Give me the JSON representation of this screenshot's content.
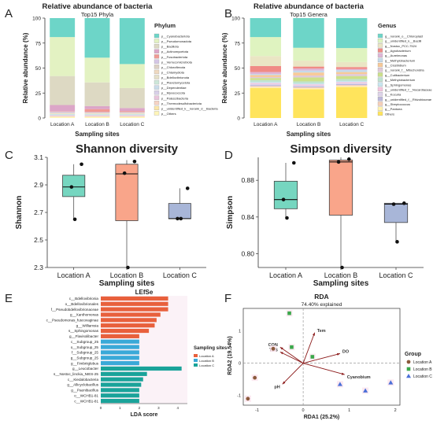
{
  "panels": {
    "A": "A",
    "B": "B",
    "C": "C",
    "D": "D",
    "E": "E",
    "F": "F"
  },
  "chart_data": [
    {
      "id": "A",
      "type": "bar",
      "stacked": true,
      "title": "Relative abundance of bacteria",
      "subtitle": "Top15 Phyla",
      "xlabel": "Sampling sites",
      "ylabel": "Relative abundance (%)",
      "ylim": [
        0,
        100
      ],
      "yticks": [
        0,
        25,
        50,
        75,
        100
      ],
      "legend_title": "Phylum",
      "legend_position": "right",
      "categories": [
        "Location A",
        "Location B",
        "Location C"
      ],
      "series": [
        {
          "name": "p__Others",
          "color": "#fff5b8",
          "values": [
            1,
            1,
            1
          ]
        },
        {
          "name": "p__unidentified_k__norank_d__Bacteria",
          "color": "#fbe6a8",
          "values": [
            0.5,
            0.5,
            0.5
          ]
        },
        {
          "name": "p__Thermodesulfobacteriota",
          "color": "#f6d3c4",
          "values": [
            0.5,
            0.5,
            0.5
          ]
        },
        {
          "name": "p__Patescibacteria",
          "color": "#e9c5dc",
          "values": [
            0.5,
            0.5,
            0.5
          ]
        },
        {
          "name": "p__Myxococcota",
          "color": "#d8d0e8",
          "values": [
            0.5,
            0.5,
            0.5
          ]
        },
        {
          "name": "p__Dependentiae",
          "color": "#c9dcea",
          "values": [
            0.5,
            0.5,
            0.5
          ]
        },
        {
          "name": "p__Planctomycetota",
          "color": "#cde7d9",
          "values": [
            0.5,
            0.5,
            0.5
          ]
        },
        {
          "name": "p__Bdellovibrionota",
          "color": "#e5e0c8",
          "values": [
            0.5,
            0.5,
            0.5
          ]
        },
        {
          "name": "p__Chlamydiota",
          "color": "#efd9c0",
          "values": [
            0.5,
            0.5,
            0.5
          ]
        },
        {
          "name": "p__Chloroflexota",
          "color": "#dcd0c4",
          "values": [
            0.5,
            0.5,
            0.5
          ]
        },
        {
          "name": "p__Verrucomicrobiota",
          "color": "#d5c6e6",
          "values": [
            1,
            0.5,
            0.5
          ]
        },
        {
          "name": "p__Fusobacteriota",
          "color": "#f09a94",
          "values": [
            0.5,
            3,
            1
          ]
        },
        {
          "name": "p__Actinomycetota",
          "color": "#dca6c8",
          "values": [
            6,
            3,
            3
          ]
        },
        {
          "name": "p__Bacillota",
          "color": "#ddd9c3",
          "values": [
            29,
            24,
            20
          ]
        },
        {
          "name": "p__Pseudomonadota",
          "color": "#e3f2c2",
          "values": [
            39,
            25,
            24
          ]
        },
        {
          "name": "p__Cyanobacteriota",
          "color": "#6dd5c8",
          "values": [
            19,
            40,
            46
          ]
        }
      ]
    },
    {
      "id": "B",
      "type": "bar",
      "stacked": true,
      "title": "Relative abundance of bacteria",
      "subtitle": "Top15 Genera",
      "xlabel": "Sampling sites",
      "ylabel": "Relative abundance (%)",
      "ylim": [
        0,
        100
      ],
      "yticks": [
        0,
        25,
        50,
        75,
        100
      ],
      "legend_title": "Genus",
      "legend_position": "right",
      "categories": [
        "Location A",
        "Location B",
        "Location C"
      ],
      "series": [
        {
          "name": "Others",
          "color": "#ffe45c",
          "values": [
            30,
            29,
            31
          ]
        },
        {
          "name": "g__Pantoea",
          "color": "#fff2b0",
          "values": [
            1,
            1,
            1
          ]
        },
        {
          "name": "g__Streptococcus",
          "color": "#f6cfb9",
          "values": [
            1,
            1,
            1
          ]
        },
        {
          "name": "g__unidentified_f__Rhizobiaceae",
          "color": "#bbb7dc",
          "values": [
            1,
            1,
            1
          ]
        },
        {
          "name": "g__Kocuria",
          "color": "#ded3ea",
          "values": [
            1,
            1,
            1
          ]
        },
        {
          "name": "g__unidentified_f__Nocardiaceae",
          "color": "#f5c4de",
          "values": [
            1,
            1,
            1
          ]
        },
        {
          "name": "g__Sphingomonas",
          "color": "#c8e6f0",
          "values": [
            1,
            1,
            1
          ]
        },
        {
          "name": "g__Methylobacterium",
          "color": "#bfe3d0",
          "values": [
            2,
            2,
            2
          ]
        },
        {
          "name": "g__Cutibacterium",
          "color": "#cce08a",
          "values": [
            2,
            4,
            3
          ]
        },
        {
          "name": "g__norank_f__Mitochondria",
          "color": "#e0c9d8",
          "values": [
            1,
            2,
            2
          ]
        },
        {
          "name": "g__Clostridium",
          "color": "#f7c998",
          "values": [
            2,
            3,
            2
          ]
        },
        {
          "name": "g__Methylobacterium",
          "color": "#c5d9ea",
          "values": [
            1,
            2,
            2
          ]
        },
        {
          "name": "g__Aureimonas",
          "color": "#ddb5d6",
          "values": [
            2,
            2,
            1
          ]
        },
        {
          "name": "g__Agrobacterium",
          "color": "#f08a86",
          "values": [
            6,
            2,
            2
          ]
        },
        {
          "name": "g__Nostoc_PCC-7524",
          "color": "#eae5c4",
          "values": [
            10,
            6,
            5
          ]
        },
        {
          "name": "g__unidentified_k__Bacilli",
          "color": "#dff3c0",
          "values": [
            19,
            13,
            14
          ]
        },
        {
          "name": "g__norank_o__Chloroplast",
          "color": "#6dd5c8",
          "values": [
            19,
            30,
            30
          ]
        }
      ]
    },
    {
      "id": "C",
      "type": "box",
      "title": "Shannon diversity",
      "xlabel": "Sampling sites",
      "ylabel": "Shannon",
      "ylim": [
        2.3,
        3.1
      ],
      "yticks": [
        "2.3",
        "2.5",
        "2.7",
        "2.9",
        "3.1"
      ],
      "categories": [
        "Location A",
        "Location B",
        "Location C"
      ],
      "colors": [
        "#76d6c0",
        "#f9a58a",
        "#a8b6d8"
      ],
      "boxes": [
        {
          "q1": 2.815,
          "median": 2.885,
          "q3": 2.97,
          "min": 2.65,
          "max": 3.05,
          "points": [
            3.05,
            2.885,
            2.65
          ]
        },
        {
          "q1": 2.64,
          "median": 2.98,
          "q3": 3.05,
          "min": 2.3,
          "max": 3.08,
          "points": [
            3.07,
            2.985,
            2.3
          ]
        },
        {
          "q1": 2.655,
          "median": 2.655,
          "q3": 2.765,
          "min": 2.655,
          "max": 2.875,
          "points": [
            2.875,
            2.655,
            2.655
          ]
        }
      ]
    },
    {
      "id": "D",
      "type": "box",
      "title": "Simpson diversity",
      "xlabel": "Sampling sites",
      "ylabel": "Simpson",
      "ylim": [
        0.785,
        0.905
      ],
      "yticks": [
        "0.80",
        "0.84",
        "0.88"
      ],
      "categories": [
        "Location A",
        "Location B",
        "Location C"
      ],
      "colors": [
        "#76d6c0",
        "#f9a58a",
        "#a8b6d8"
      ],
      "boxes": [
        {
          "q1": 0.849,
          "median": 0.859,
          "q3": 0.879,
          "min": 0.839,
          "max": 0.899,
          "points": [
            0.899,
            0.859,
            0.839
          ]
        },
        {
          "q1": 0.842,
          "median": 0.9,
          "q3": 0.902,
          "min": 0.785,
          "max": 0.905,
          "points": [
            0.903,
            0.9,
            0.785
          ]
        },
        {
          "q1": 0.834,
          "median": 0.854,
          "q3": 0.855,
          "min": 0.813,
          "max": 0.855,
          "points": [
            0.855,
            0.854,
            0.813
          ]
        }
      ]
    },
    {
      "id": "E",
      "type": "bar",
      "orientation": "horizontal",
      "title": "LEfSe",
      "xlabel": "LDA score",
      "xticks": [
        "0",
        "1",
        "2",
        "3",
        "4"
      ],
      "xlim": [
        0,
        4.5
      ],
      "legend_title": "Sampling sites",
      "legend_position": "right",
      "legend": [
        {
          "name": "Location A",
          "color": "#e8603c"
        },
        {
          "name": "Location B",
          "color": "#3aa9d8"
        },
        {
          "name": "Location C",
          "color": "#1aa39a"
        }
      ],
      "bars": [
        {
          "label": "c__Bdellovibrionia",
          "value": 3.5,
          "group": "Location A"
        },
        {
          "label": "o__Bdellovibrionales",
          "value": 3.5,
          "group": "Location A"
        },
        {
          "label": "f__Pseudobdellovibrionaceae",
          "value": 3.5,
          "group": "Location A"
        },
        {
          "label": "g__Xanthomonas",
          "value": 3.1,
          "group": "Location A"
        },
        {
          "label": "c__Pseudomonas_fuscovaginae",
          "value": 2.9,
          "group": "Location A"
        },
        {
          "label": "g__Williamsia",
          "value": 2.8,
          "group": "Location A"
        },
        {
          "label": "s__Sphingomonas",
          "value": 2.5,
          "group": "Location A"
        },
        {
          "label": "g__Flavisolibacter",
          "value": 2.0,
          "group": "Location A"
        },
        {
          "label": "c__Subgroup_25",
          "value": 2.0,
          "group": "Location B"
        },
        {
          "label": "o__Subgroup_25",
          "value": 2.0,
          "group": "Location B"
        },
        {
          "label": "f__Subgroup_25",
          "value": 2.0,
          "group": "Location B"
        },
        {
          "label": "g__Subgroup_25",
          "value": 2.0,
          "group": "Location B"
        },
        {
          "label": "g__Fimbriiglobus",
          "value": 2.0,
          "group": "Location B"
        },
        {
          "label": "g__Leucobacter",
          "value": 4.2,
          "group": "Location C"
        },
        {
          "label": "s__Nostoc_linckia_NIES-25",
          "value": 2.4,
          "group": "Location C"
        },
        {
          "label": "c__Kiedalobacteria",
          "value": 2.2,
          "group": "Location C"
        },
        {
          "label": "g__Allicyclobacillus",
          "value": 2.1,
          "group": "Location C"
        },
        {
          "label": "g__Paenibacillus",
          "value": 2.0,
          "group": "Location C"
        },
        {
          "label": "o__WCHB1-81",
          "value": 2.0,
          "group": "Location C"
        },
        {
          "label": "c__WCHB1-81",
          "value": 2.0,
          "group": "Location C"
        }
      ]
    },
    {
      "id": "F",
      "type": "scatter",
      "title": "RDA",
      "subtitle": "74.40% explained",
      "xlabel": "RDA1 (25.2%)",
      "ylabel": "RDA2 (19.54%)",
      "xlim": [
        -1.3,
        2.1
      ],
      "ylim": [
        -1.3,
        1.7
      ],
      "xticks": [
        -1,
        0,
        1,
        2
      ],
      "yticks": [
        -1,
        0,
        1
      ],
      "legend_title": "Group",
      "legend_position": "right",
      "legend": [
        {
          "name": "Location A",
          "color": "#8b5a3c",
          "shape": "circle"
        },
        {
          "name": "Location B",
          "color": "#3aa84b",
          "shape": "square"
        },
        {
          "name": "Location C",
          "color": "#4a6fd8",
          "shape": "triangle"
        }
      ],
      "points": [
        {
          "group": "Location A",
          "x": -1.05,
          "y": -0.45
        },
        {
          "group": "Location A",
          "x": -1.2,
          "y": -1.1
        },
        {
          "group": "Location A",
          "x": -0.65,
          "y": 0.45
        },
        {
          "group": "Location B",
          "x": -0.3,
          "y": 1.55
        },
        {
          "group": "Location B",
          "x": -0.25,
          "y": 0.5
        },
        {
          "group": "Location B",
          "x": 0.2,
          "y": 0.2
        },
        {
          "group": "Location C",
          "x": 1.35,
          "y": -0.85
        },
        {
          "group": "Location C",
          "x": 1.9,
          "y": -0.6
        },
        {
          "group": "Location C",
          "x": 0.8,
          "y": -0.65
        }
      ],
      "vectors": [
        {
          "label": "Tem",
          "x": 0.25,
          "y": 0.95
        },
        {
          "label": "CON",
          "x": -0.5,
          "y": 0.5
        },
        {
          "label": "TDS",
          "x": -0.5,
          "y": 0.35
        },
        {
          "label": "DO",
          "x": 0.8,
          "y": 0.3
        },
        {
          "label": "pH",
          "x": -0.45,
          "y": -0.65
        },
        {
          "label": "Cyanobium",
          "x": 0.9,
          "y": -0.35
        }
      ]
    }
  ]
}
